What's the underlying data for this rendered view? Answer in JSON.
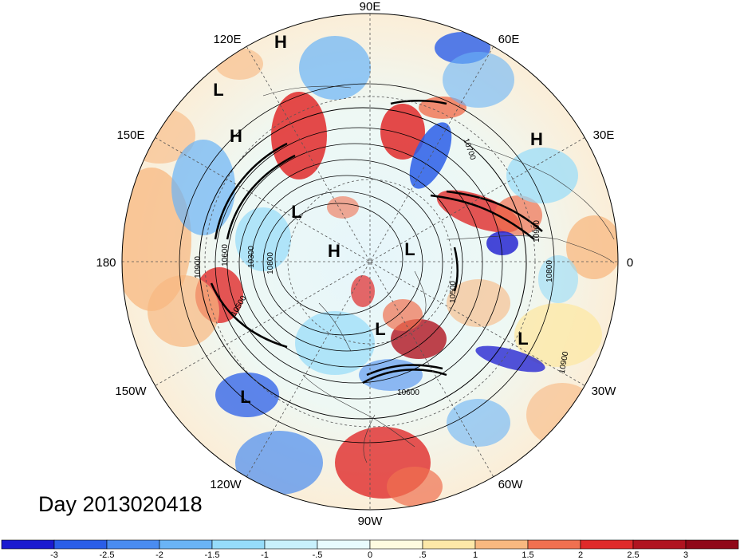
{
  "title": "Day 2013020418",
  "longitude_labels": [
    "90E",
    "60E",
    "30E",
    "0",
    "30W",
    "60W",
    "90W",
    "120W",
    "150W",
    "180",
    "150E",
    "120E"
  ],
  "pressure_centers": [
    {
      "type": "H",
      "lon_label": "near 120E"
    },
    {
      "type": "L"
    },
    {
      "type": "H"
    },
    {
      "type": "H"
    },
    {
      "type": "L"
    },
    {
      "type": "H"
    },
    {
      "type": "L"
    },
    {
      "type": "L"
    },
    {
      "type": "L"
    },
    {
      "type": "L"
    }
  ],
  "contour_labels": [
    "10900",
    "10600",
    "10300",
    "10800",
    "10500",
    "10600",
    "10900",
    "10800",
    "10700",
    "10500",
    "10900"
  ],
  "colorbar": {
    "ticks": [
      "-3",
      "-2.5",
      "-2",
      "-1.5",
      "-1",
      "-.5",
      "0",
      ".5",
      "1",
      "1.5",
      "2",
      "2.5",
      "3"
    ],
    "colors": [
      "#1a1ad0",
      "#2a5ee8",
      "#4a8cf0",
      "#6ab4f6",
      "#96dcfa",
      "#c8f0fc",
      "#e8fbfe",
      "#fefbe0",
      "#fde8a8",
      "#f8b880",
      "#f07050",
      "#e02a2a",
      "#b01420",
      "#900818"
    ]
  }
}
